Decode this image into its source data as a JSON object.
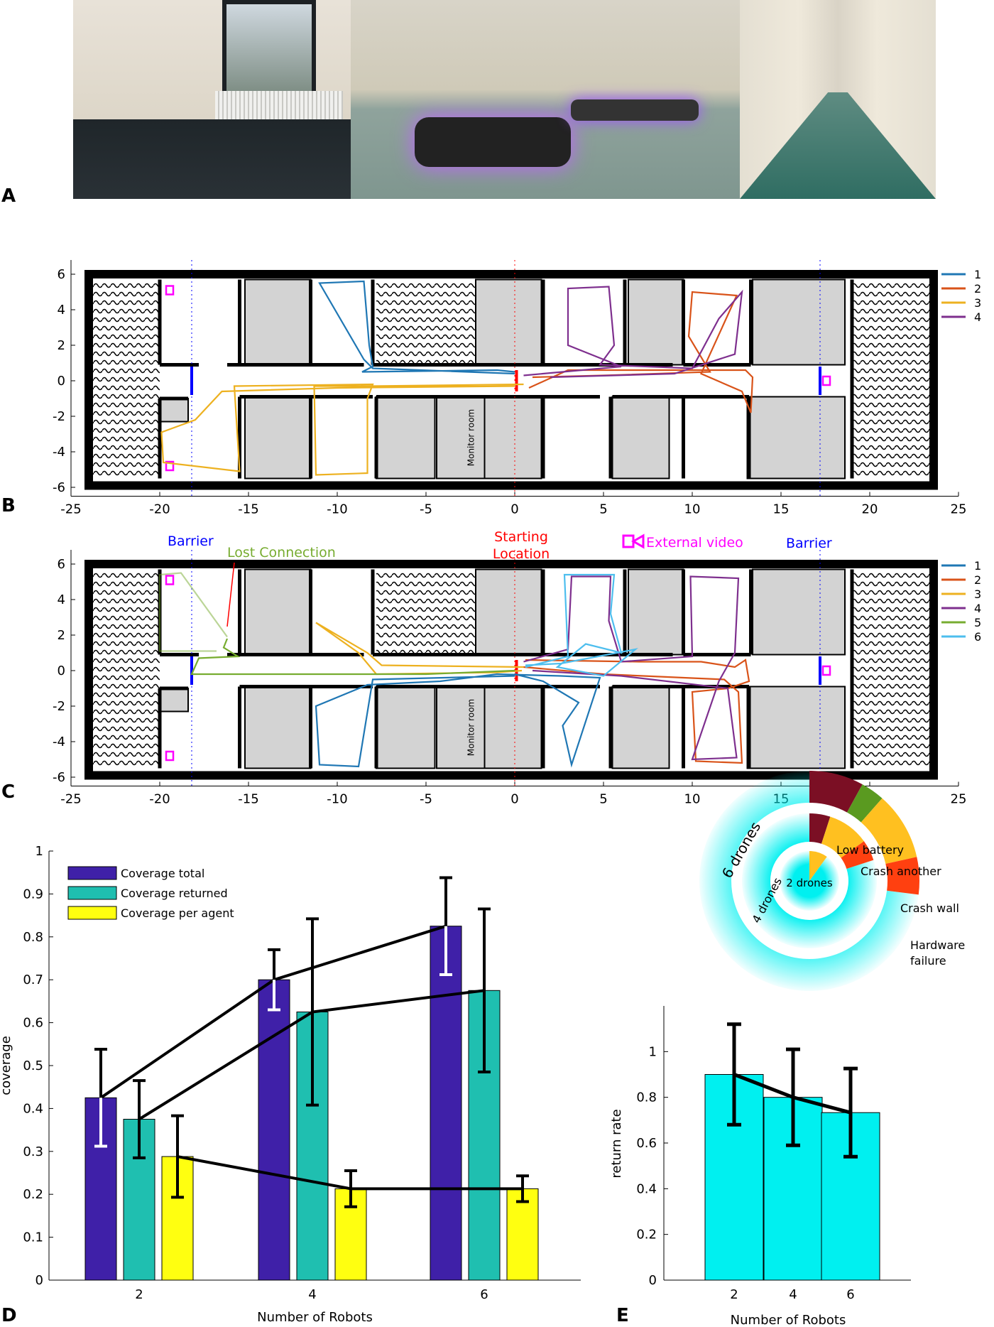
{
  "panels": {
    "A": "A",
    "B": "B",
    "C": "C",
    "D": "D",
    "E": "E"
  },
  "colors": {
    "traj": [
      "#1f77b4",
      "#d95319",
      "#edb120",
      "#7e2f8e",
      "#77ac30",
      "#4dbeee"
    ],
    "barrier": "#0000ff",
    "start": "#ff0000",
    "camera": "#ff00ff",
    "lost": "#77ac30",
    "cov_total": "#3f20a8",
    "cov_returned": "#1fbfb0",
    "cov_agent": "#ffff10",
    "return_bar": "#00f0f0",
    "fail_low_battery": "#7b0f24",
    "fail_crash_another": "#5a9a20",
    "fail_crash_wall": "#ffc020",
    "fail_hardware": "#ff4010"
  },
  "map_axes": {
    "x_ticks": [
      "-25",
      "-20",
      "-15",
      "-10",
      "-5",
      "0",
      "5",
      "10",
      "15",
      "20",
      "25"
    ],
    "y_ticks": [
      "6",
      "4",
      "2",
      "0",
      "-2",
      "-4",
      "-6"
    ],
    "xlim": [
      -25,
      25
    ],
    "ylim": [
      -6.5,
      6.8
    ]
  },
  "map_labels": {
    "monitor_room": "Monitor room",
    "barrier_left": "Barrier",
    "barrier_right": "Barrier",
    "lost_connection": "Lost Connection",
    "starting_location": [
      "Starting",
      "Location"
    ],
    "external_video": "External video"
  },
  "legend_B": [
    "1",
    "2",
    "3",
    "4"
  ],
  "legend_C": [
    "1",
    "2",
    "3",
    "4",
    "5",
    "6"
  ],
  "chart_data": [
    {
      "type": "bar",
      "panel": "D",
      "categories": [
        "2",
        "4",
        "6"
      ],
      "series": [
        {
          "name": "Coverage total",
          "values": [
            0.425,
            0.7,
            0.825
          ],
          "err": [
            0.113,
            0.07,
            0.113
          ]
        },
        {
          "name": "Coverage returned",
          "values": [
            0.375,
            0.625,
            0.675
          ],
          "err": [
            0.09,
            0.217,
            0.19
          ]
        },
        {
          "name": "Coverage per agent",
          "values": [
            0.288,
            0.213,
            0.213
          ],
          "err": [
            0.095,
            0.042,
            0.03
          ]
        }
      ],
      "xlabel": "Number of Robots",
      "ylabel": "coverage",
      "ylim": [
        0,
        1
      ],
      "yticks": [
        "0",
        "0.1",
        "0.2",
        "0.3",
        "0.4",
        "0.5",
        "0.6",
        "0.7",
        "0.8",
        "0.9",
        "1"
      ],
      "legend": "top-left"
    },
    {
      "type": "bar",
      "panel": "E",
      "categories": [
        "2",
        "4",
        "6"
      ],
      "values": [
        0.9,
        0.8,
        0.733
      ],
      "err": [
        0.22,
        0.21,
        0.193
      ],
      "xlabel": "Number of Robots",
      "ylabel": "return rate",
      "ylim": [
        0,
        1.25
      ],
      "yticks": [
        "0",
        "0.2",
        "0.4",
        "0.6",
        "0.8",
        "1"
      ]
    },
    {
      "type": "pie",
      "panel": "E-inset",
      "rings": [
        {
          "label": "2 drones",
          "fail_fraction": 0.1,
          "segments": [
            0,
            0,
            0.1,
            0
          ]
        },
        {
          "label": "4 drones",
          "fail_fraction": 0.2,
          "segments": [
            0.05,
            0,
            0.1,
            0.05
          ]
        },
        {
          "label": "6 drones",
          "fail_fraction": 0.27,
          "segments": [
            0.08,
            0.035,
            0.1,
            0.055
          ]
        }
      ],
      "failure_labels": [
        "Low battery",
        "Crash another",
        "Crash wall",
        "Hardware",
        "failure"
      ]
    }
  ]
}
